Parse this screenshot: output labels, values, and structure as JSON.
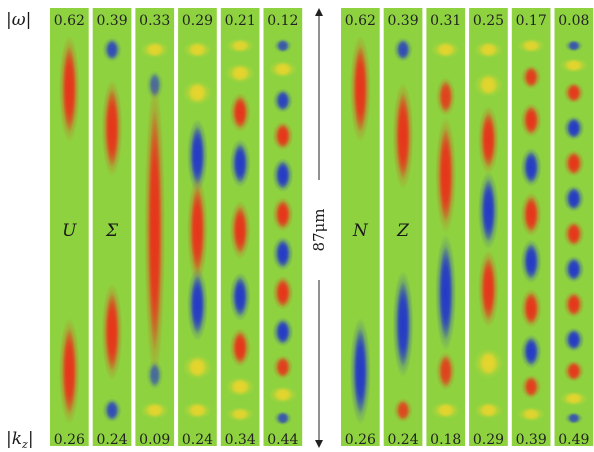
{
  "labels": {
    "omega": "|ω|",
    "kz": "|k",
    "kz_sub": "z",
    "kz_close": "|",
    "scale": "87μm"
  },
  "panels": [
    {
      "id": "left",
      "omega": [
        "0.62",
        "0.39",
        "0.33",
        "0.29",
        "0.21",
        "0.12"
      ],
      "kz": [
        "0.26",
        "0.24",
        "0.09",
        "0.24",
        "0.34",
        "0.44"
      ],
      "symbols": [
        "U",
        "Σ",
        "",
        "",
        "",
        ""
      ],
      "strips": [
        [
          [
            "r",
            0.14,
            0.22,
            1
          ],
          [
            "r",
            0.86,
            0.22,
            1
          ]
        ],
        [
          [
            "b",
            0.04,
            0.05,
            0.8
          ],
          [
            "r",
            0.24,
            0.2,
            1
          ],
          [
            "r",
            0.76,
            0.2,
            1
          ],
          [
            "b",
            0.96,
            0.05,
            0.8
          ]
        ],
        [
          [
            "y",
            0.04,
            0.035,
            0.8
          ],
          [
            "b",
            0.13,
            0.06,
            0.55
          ],
          [
            "r",
            0.5,
            0.62,
            1
          ],
          [
            "b",
            0.87,
            0.06,
            0.55
          ],
          [
            "y",
            0.96,
            0.035,
            0.8
          ]
        ],
        [
          [
            "y",
            0.04,
            0.035,
            0.8
          ],
          [
            "y",
            0.15,
            0.05,
            0.85
          ],
          [
            "b",
            0.31,
            0.15,
            1
          ],
          [
            "r",
            0.5,
            0.22,
            1
          ],
          [
            "b",
            0.69,
            0.15,
            1
          ],
          [
            "y",
            0.85,
            0.05,
            0.85
          ],
          [
            "y",
            0.96,
            0.035,
            0.8
          ]
        ],
        [
          [
            "y",
            0.03,
            0.03,
            0.75
          ],
          [
            "y",
            0.1,
            0.04,
            0.85
          ],
          [
            "r",
            0.2,
            0.08,
            1
          ],
          [
            "b",
            0.33,
            0.1,
            1
          ],
          [
            "r",
            0.5,
            0.12,
            1
          ],
          [
            "b",
            0.67,
            0.1,
            1
          ],
          [
            "r",
            0.8,
            0.08,
            1
          ],
          [
            "y",
            0.9,
            0.04,
            0.85
          ],
          [
            "y",
            0.97,
            0.03,
            0.75
          ]
        ],
        [
          [
            "b",
            0.03,
            0.03,
            0.7
          ],
          [
            "y",
            0.09,
            0.035,
            0.8
          ],
          [
            "b",
            0.17,
            0.05,
            0.9
          ],
          [
            "r",
            0.26,
            0.06,
            1
          ],
          [
            "b",
            0.36,
            0.07,
            1
          ],
          [
            "r",
            0.46,
            0.07,
            1
          ],
          [
            "b",
            0.56,
            0.07,
            1
          ],
          [
            "r",
            0.66,
            0.07,
            1
          ],
          [
            "b",
            0.76,
            0.06,
            1
          ],
          [
            "r",
            0.85,
            0.05,
            0.9
          ],
          [
            "y",
            0.92,
            0.035,
            0.8
          ],
          [
            "b",
            0.98,
            0.03,
            0.7
          ]
        ]
      ]
    },
    {
      "id": "right",
      "omega": [
        "0.62",
        "0.39",
        "0.31",
        "0.25",
        "0.17",
        "0.08"
      ],
      "kz": [
        "0.26",
        "0.24",
        "0.18",
        "0.29",
        "0.39",
        "0.49"
      ],
      "symbols": [
        "N",
        "Z",
        "",
        "",
        "",
        ""
      ],
      "strips": [
        [
          [
            "r",
            0.14,
            0.22,
            1
          ],
          [
            "b",
            0.86,
            0.22,
            1
          ]
        ],
        [
          [
            "b",
            0.04,
            0.05,
            0.8
          ],
          [
            "r",
            0.26,
            0.22,
            1
          ],
          [
            "b",
            0.74,
            0.22,
            1
          ],
          [
            "r",
            0.96,
            0.05,
            0.8
          ]
        ],
        [
          [
            "y",
            0.04,
            0.035,
            0.8
          ],
          [
            "r",
            0.16,
            0.08,
            0.85
          ],
          [
            "r",
            0.36,
            0.24,
            1
          ],
          [
            "b",
            0.66,
            0.24,
            1
          ],
          [
            "r",
            0.86,
            0.08,
            0.85
          ],
          [
            "y",
            0.96,
            0.035,
            0.8
          ]
        ],
        [
          [
            "y",
            0.04,
            0.035,
            0.8
          ],
          [
            "y",
            0.13,
            0.05,
            0.8
          ],
          [
            "r",
            0.27,
            0.14,
            1
          ],
          [
            "b",
            0.45,
            0.16,
            1
          ],
          [
            "r",
            0.65,
            0.16,
            1
          ],
          [
            "y",
            0.84,
            0.06,
            0.85
          ],
          [
            "y",
            0.96,
            0.035,
            0.8
          ]
        ],
        [
          [
            "y",
            0.03,
            0.03,
            0.75
          ],
          [
            "r",
            0.11,
            0.05,
            0.9
          ],
          [
            "r",
            0.22,
            0.07,
            1
          ],
          [
            "b",
            0.34,
            0.08,
            1
          ],
          [
            "r",
            0.46,
            0.09,
            1
          ],
          [
            "b",
            0.58,
            0.09,
            1
          ],
          [
            "r",
            0.7,
            0.08,
            1
          ],
          [
            "b",
            0.81,
            0.07,
            1
          ],
          [
            "r",
            0.9,
            0.05,
            0.9
          ],
          [
            "y",
            0.97,
            0.03,
            0.75
          ]
        ],
        [
          [
            "b",
            0.03,
            0.025,
            0.7
          ],
          [
            "y",
            0.08,
            0.03,
            0.8
          ],
          [
            "r",
            0.15,
            0.045,
            0.95
          ],
          [
            "b",
            0.24,
            0.05,
            1
          ],
          [
            "r",
            0.33,
            0.055,
            1
          ],
          [
            "b",
            0.42,
            0.055,
            1
          ],
          [
            "r",
            0.51,
            0.055,
            1
          ],
          [
            "b",
            0.6,
            0.055,
            1
          ],
          [
            "r",
            0.69,
            0.055,
            1
          ],
          [
            "b",
            0.78,
            0.05,
            1
          ],
          [
            "r",
            0.86,
            0.045,
            0.95
          ],
          [
            "y",
            0.93,
            0.03,
            0.8
          ],
          [
            "b",
            0.98,
            0.025,
            0.7
          ]
        ]
      ]
    }
  ],
  "colors": {
    "background": "#8ed33f",
    "red": "#e8331a",
    "blue": "#2438c8",
    "yellow": "#f0d42c",
    "white": "#ffffff"
  }
}
